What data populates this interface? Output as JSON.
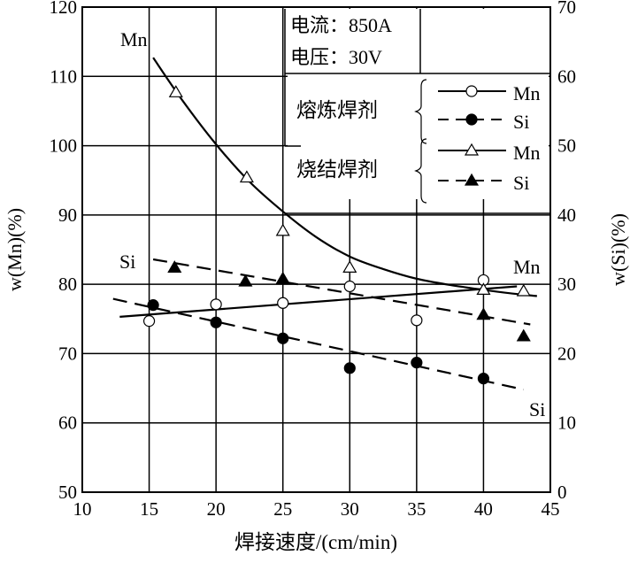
{
  "chart_data": {
    "type": "line",
    "xlabel": "焊接速度/(cm/min)",
    "ylabel": "w(Mn)(%)",
    "y2label": "w(Si)(%)",
    "xlim": [
      10,
      45
    ],
    "ylim": [
      50,
      120
    ],
    "y2lim": [
      0,
      70
    ],
    "xticks": [
      "10",
      "15",
      "20",
      "25",
      "30",
      "35",
      "40",
      "45"
    ],
    "yticks": [
      "50",
      "60",
      "70",
      "80",
      "90",
      "100",
      "110",
      "120"
    ],
    "y2ticks": [
      "0",
      "10",
      "20",
      "30",
      "40",
      "50",
      "60",
      "70"
    ],
    "grid": true,
    "annotation": {
      "line1": "电流：850A",
      "line2": "电压：30V"
    },
    "legend": {
      "placement": "top-right",
      "groups": [
        {
          "name": "熔炼焊剂",
          "entries": [
            "Mn",
            "Si"
          ]
        },
        {
          "name": "烧结焊剂",
          "entries": [
            "Mn",
            "Si"
          ]
        }
      ]
    },
    "curve_labels": {
      "mn_top": "Mn",
      "si_left": "Si",
      "mn_right": "Mn",
      "si_bottom": "Si"
    },
    "series": [
      {
        "name": "熔炼焊剂 Mn",
        "axis": "left",
        "marker": "open-circle",
        "line": "solid",
        "points": [
          [
            15,
            74.7
          ],
          [
            20,
            77.1
          ],
          [
            25,
            77.3
          ],
          [
            30,
            79.7
          ],
          [
            35,
            74.8
          ],
          [
            40,
            80.6
          ]
        ],
        "fit": [
          [
            12.8,
            75.3
          ],
          [
            42.5,
            79.7
          ]
        ]
      },
      {
        "name": "熔炼焊剂 Si",
        "axis": "right",
        "marker": "filled-circle",
        "line": "dashed",
        "points": [
          [
            15.3,
            27.0
          ],
          [
            20,
            24.5
          ],
          [
            25,
            22.2
          ],
          [
            30,
            17.9
          ],
          [
            35,
            18.7
          ],
          [
            40,
            16.4
          ]
        ],
        "fit": [
          [
            12.3,
            27.9
          ],
          [
            43,
            14.8
          ]
        ]
      },
      {
        "name": "烧结焊剂 Mn",
        "axis": "left",
        "marker": "open-triangle",
        "line": "solid",
        "points": [
          [
            17,
            107.7
          ],
          [
            22.3,
            95.4
          ],
          [
            25,
            87.7
          ],
          [
            30,
            82.4
          ],
          [
            40,
            79.2
          ],
          [
            43,
            79.0
          ]
        ],
        "fit": [
          [
            15.3,
            112.7
          ],
          [
            17.5,
            106.5
          ],
          [
            20,
            100.2
          ],
          [
            22.5,
            94.8
          ],
          [
            25,
            90.5
          ],
          [
            27.5,
            86.8
          ],
          [
            30,
            84.0
          ],
          [
            32.5,
            82.2
          ],
          [
            35,
            80.8
          ],
          [
            37.5,
            79.9
          ],
          [
            40,
            79.2
          ],
          [
            42,
            78.7
          ],
          [
            44,
            78.3
          ]
        ]
      },
      {
        "name": "烧结焊剂 Si",
        "axis": "right",
        "marker": "filled-triangle",
        "line": "dashed",
        "points": [
          [
            16.9,
            32.4
          ],
          [
            22.2,
            30.4
          ],
          [
            25,
            30.8
          ],
          [
            40,
            25.6
          ],
          [
            43,
            22.5
          ]
        ],
        "fit": [
          [
            15.3,
            33.6
          ],
          [
            43.5,
            24.2
          ]
        ]
      }
    ]
  }
}
